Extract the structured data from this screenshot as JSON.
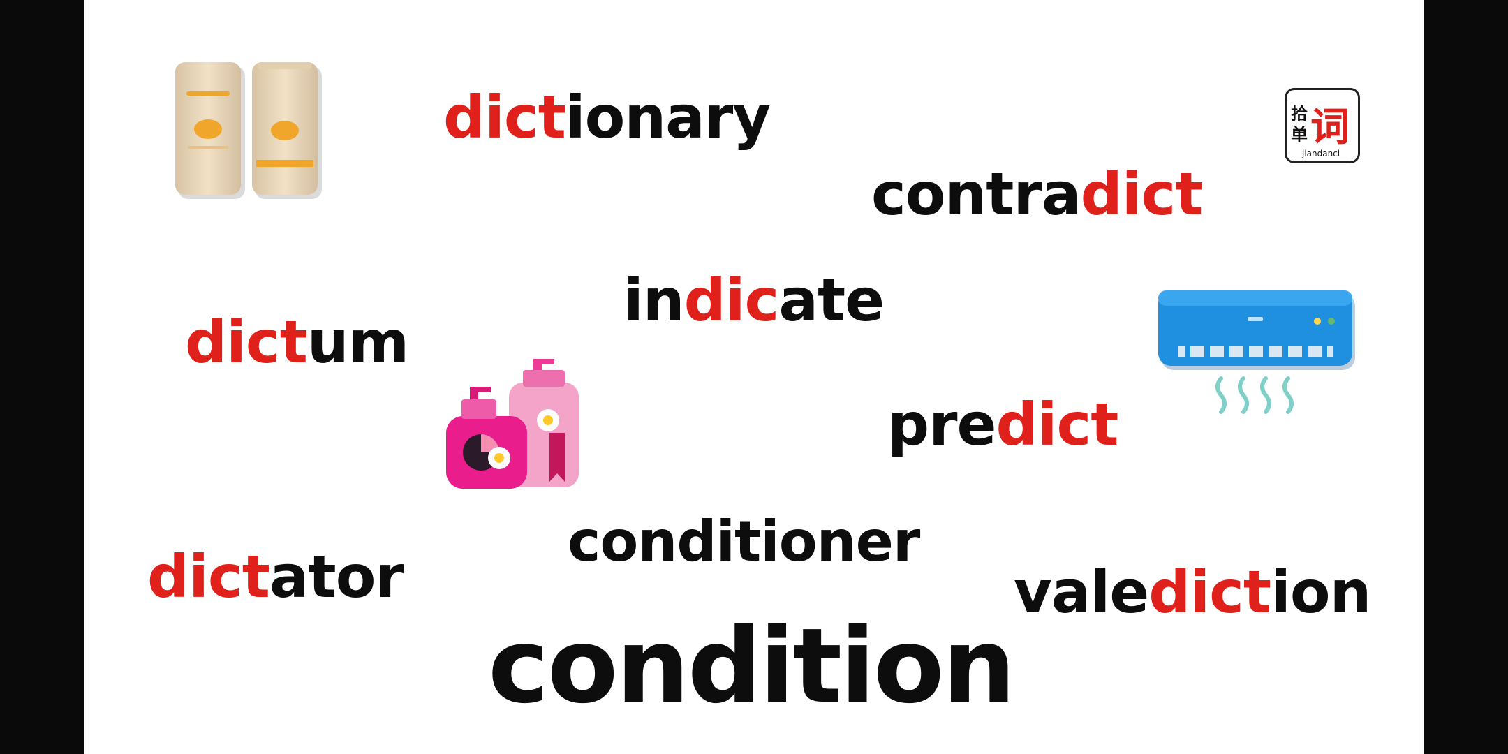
{
  "colors": {
    "highlight": "#e0201b",
    "text": "#0d0d0d",
    "background": "#ffffff",
    "frame": "#0a0a0a"
  },
  "words": {
    "dictionary": {
      "a": "dict",
      "b": "ionary"
    },
    "contradict": {
      "a": "contra",
      "b": "dict"
    },
    "indicate": {
      "a": "in",
      "b": "dic",
      "c": "ate"
    },
    "dictum": {
      "a": "dict",
      "b": "um"
    },
    "predict": {
      "a": "pre",
      "b": "dict"
    },
    "dictator": {
      "a": "dict",
      "b": "ator"
    },
    "conditioner": {
      "a": "conditioner"
    },
    "valediction": {
      "a": "vale",
      "b": "dict",
      "c": "ion"
    },
    "condition": {
      "a": "condition"
    }
  },
  "logo": {
    "char_top": "拾",
    "char_bottom": "单",
    "char_main": "词",
    "caption": "jiandanci"
  },
  "icons": {
    "sunscreen": "sunscreen-bottles-icon",
    "shampoo": "shampoo-bottles-icon",
    "air_conditioner": "air-conditioner-icon"
  }
}
